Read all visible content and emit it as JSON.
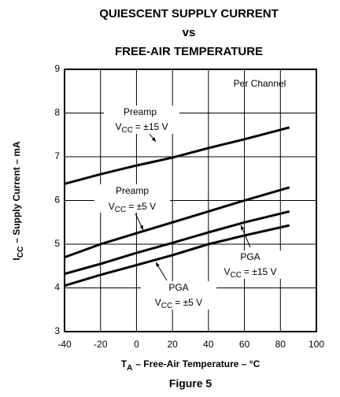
{
  "chart_data": {
    "type": "line",
    "title": [
      "QUIESCENT SUPPLY CURRENT",
      "vs",
      "FREE-AIR TEMPERATURE"
    ],
    "x_label": {
      "base": "T",
      "sub": "A",
      "text": "– Free-Air Temperature – °C"
    },
    "y_label": {
      "base": "I",
      "sub": "CC",
      "text": "– Supply Current – mA"
    },
    "caption": "Figure 5",
    "note": "Per Channel",
    "x": [
      -40,
      -20,
      0,
      20,
      40,
      60,
      85
    ],
    "series": [
      {
        "name": "Preamp",
        "condition": {
          "base": "V",
          "sub": "CC",
          "text": "= ±15 V"
        },
        "color": "#000000",
        "values": [
          6.38,
          6.6,
          6.8,
          6.98,
          7.2,
          7.4,
          7.67
        ]
      },
      {
        "name": "Preamp",
        "condition": {
          "base": "V",
          "sub": "CC",
          "text": "= ±5 V"
        },
        "color": "#000000",
        "values": [
          4.7,
          5.0,
          5.25,
          5.5,
          5.75,
          6.0,
          6.3
        ]
      },
      {
        "name": "PGA",
        "condition": {
          "base": "V",
          "sub": "CC",
          "text": "= ±15 V"
        },
        "color": "#000000",
        "values": [
          4.32,
          4.55,
          4.8,
          5.03,
          5.27,
          5.5,
          5.75
        ]
      },
      {
        "name": "PGA",
        "condition": {
          "base": "V",
          "sub": "CC",
          "text": "= ±5 V"
        },
        "color": "#000000",
        "values": [
          4.05,
          4.3,
          4.52,
          4.75,
          5.0,
          5.2,
          5.43
        ]
      }
    ],
    "xlim": [
      -40,
      100
    ],
    "xticks": [
      -40,
      -20,
      0,
      20,
      40,
      60,
      80,
      100
    ],
    "ylim": [
      3,
      9
    ],
    "yticks": [
      3,
      4,
      5,
      6,
      7,
      8,
      9
    ],
    "grid": true
  }
}
